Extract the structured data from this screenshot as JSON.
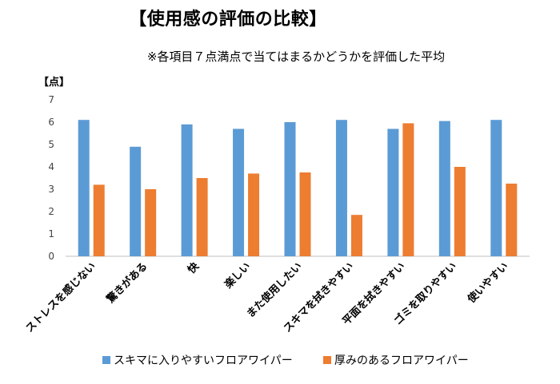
{
  "title": "【使用感の評価の比較】",
  "subtitle": "※各項目７点満点で当てはまるかどうかを評価した平均",
  "colors": {
    "series1": "#5B9BD5",
    "series2": "#ED7D31",
    "grid": "#d9d9d9",
    "axis": "#bfbfbf"
  },
  "chart_data": {
    "type": "bar",
    "ylabel": "【点】",
    "ylim": [
      0,
      7
    ],
    "yticks": [
      0,
      1,
      2,
      3,
      4,
      5,
      6,
      7
    ],
    "grid": false,
    "legend_position": "bottom",
    "categories": [
      "ストレスを感じない",
      "驚きがある",
      "快",
      "楽しい",
      "また使用したい",
      "スキマを拭きやすい",
      "平面を拭きやすい",
      "ゴミを取りやすい",
      "使いやすい"
    ],
    "series": [
      {
        "name": "スキマに入りやすいフロアワイパー",
        "values": [
          6.1,
          4.9,
          5.9,
          5.7,
          6.0,
          6.1,
          5.7,
          6.05,
          6.1
        ]
      },
      {
        "name": "厚みのあるフロアワイパー",
        "values": [
          3.2,
          3.0,
          3.5,
          3.7,
          3.75,
          1.85,
          5.95,
          4.0,
          3.25
        ]
      }
    ]
  }
}
